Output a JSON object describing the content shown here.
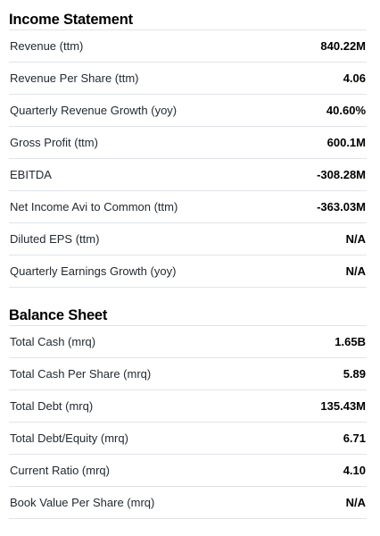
{
  "income_statement": {
    "title": "Income Statement",
    "rows": [
      {
        "label": "Revenue (ttm)",
        "value": "840.22M"
      },
      {
        "label": "Revenue Per Share (ttm)",
        "value": "4.06"
      },
      {
        "label": "Quarterly Revenue Growth (yoy)",
        "value": "40.60%"
      },
      {
        "label": "Gross Profit (ttm)",
        "value": "600.1M"
      },
      {
        "label": "EBITDA",
        "value": "-308.28M"
      },
      {
        "label": "Net Income Avi to Common (ttm)",
        "value": "-363.03M"
      },
      {
        "label": "Diluted EPS (ttm)",
        "value": "N/A"
      },
      {
        "label": "Quarterly Earnings Growth (yoy)",
        "value": "N/A"
      }
    ]
  },
  "balance_sheet": {
    "title": "Balance Sheet",
    "rows": [
      {
        "label": "Total Cash (mrq)",
        "value": "1.65B"
      },
      {
        "label": "Total Cash Per Share (mrq)",
        "value": "5.89"
      },
      {
        "label": "Total Debt (mrq)",
        "value": "135.43M"
      },
      {
        "label": "Total Debt/Equity (mrq)",
        "value": "6.71"
      },
      {
        "label": "Current Ratio (mrq)",
        "value": "4.10"
      },
      {
        "label": "Book Value Per Share (mrq)",
        "value": "N/A"
      }
    ]
  }
}
